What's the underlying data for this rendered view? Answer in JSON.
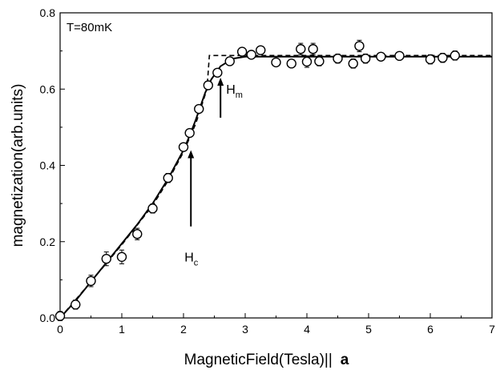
{
  "chart_data": {
    "type": "scatter",
    "title": "",
    "xlabel": "MagneticField(Tesla)||",
    "xlabel_suffix": "a",
    "ylabel": "magnetization(arb.units)",
    "xlim": [
      0,
      7
    ],
    "ylim": [
      0,
      0.8
    ],
    "x_ticks": [
      {
        "value": 0,
        "label": "0"
      },
      {
        "value": 1,
        "label": "1"
      },
      {
        "value": 2,
        "label": "2"
      },
      {
        "value": 3,
        "label": "3"
      },
      {
        "value": 4,
        "label": "4"
      },
      {
        "value": 5,
        "label": "5"
      },
      {
        "value": 6,
        "label": "6"
      },
      {
        "value": 7,
        "label": "7"
      }
    ],
    "y_ticks": [
      {
        "value": 0,
        "label": "0.0"
      },
      {
        "value": 0.2,
        "label": "0.2"
      },
      {
        "value": 0.4,
        "label": "0.4"
      },
      {
        "value": 0.6,
        "label": "0.6"
      },
      {
        "value": 0.8,
        "label": "0.8"
      }
    ],
    "grid": false,
    "annotations": {
      "temperature": "T=80mK",
      "hc": {
        "label": "H",
        "sub": "c",
        "x": 2.12,
        "y_from": 0.24,
        "y_to": 0.44
      },
      "hm": {
        "label": "H",
        "sub": "m",
        "x": 2.6,
        "y_from": 0.525,
        "y_to": 0.63
      }
    },
    "series": [
      {
        "kind": "points-with-error",
        "points": [
          {
            "x": 0.0,
            "y": 0.005,
            "err": 0.012
          },
          {
            "x": 0.25,
            "y": 0.035,
            "err": 0.012
          },
          {
            "x": 0.5,
            "y": 0.097,
            "err": 0.015
          },
          {
            "x": 0.75,
            "y": 0.155,
            "err": 0.018
          },
          {
            "x": 1.0,
            "y": 0.16,
            "err": 0.018
          },
          {
            "x": 1.25,
            "y": 0.22,
            "err": 0.015
          },
          {
            "x": 1.5,
            "y": 0.287,
            "err": 0.012
          },
          {
            "x": 1.75,
            "y": 0.367,
            "err": 0.012
          },
          {
            "x": 2.0,
            "y": 0.448,
            "err": 0.01
          },
          {
            "x": 2.1,
            "y": 0.485,
            "err": 0.01
          },
          {
            "x": 2.25,
            "y": 0.548,
            "err": 0.01
          },
          {
            "x": 2.4,
            "y": 0.61,
            "err": 0.01
          },
          {
            "x": 2.55,
            "y": 0.643,
            "err": 0.01
          },
          {
            "x": 2.75,
            "y": 0.673,
            "err": 0.008
          },
          {
            "x": 2.95,
            "y": 0.698,
            "err": 0.008
          },
          {
            "x": 3.1,
            "y": 0.69,
            "err": 0.01
          },
          {
            "x": 3.25,
            "y": 0.702,
            "err": 0.008
          },
          {
            "x": 3.5,
            "y": 0.67,
            "err": 0.01
          },
          {
            "x": 3.75,
            "y": 0.667,
            "err": 0.01
          },
          {
            "x": 3.9,
            "y": 0.705,
            "err": 0.015
          },
          {
            "x": 4.0,
            "y": 0.672,
            "err": 0.015
          },
          {
            "x": 4.1,
            "y": 0.705,
            "err": 0.015
          },
          {
            "x": 4.2,
            "y": 0.673,
            "err": 0.012
          },
          {
            "x": 4.5,
            "y": 0.68,
            "err": 0.012
          },
          {
            "x": 4.75,
            "y": 0.667,
            "err": 0.012
          },
          {
            "x": 4.85,
            "y": 0.713,
            "err": 0.015
          },
          {
            "x": 4.95,
            "y": 0.68,
            "err": 0.012
          },
          {
            "x": 5.2,
            "y": 0.685,
            "err": 0.01
          },
          {
            "x": 5.5,
            "y": 0.687,
            "err": 0.01
          },
          {
            "x": 6.0,
            "y": 0.678,
            "err": 0.012
          },
          {
            "x": 6.2,
            "y": 0.682,
            "err": 0.012
          },
          {
            "x": 6.4,
            "y": 0.688,
            "err": 0.012
          }
        ]
      },
      {
        "kind": "line-solid",
        "points": [
          {
            "x": 0.0,
            "y": 0.0
          },
          {
            "x": 0.25,
            "y": 0.045
          },
          {
            "x": 0.5,
            "y": 0.095
          },
          {
            "x": 0.75,
            "y": 0.145
          },
          {
            "x": 1.0,
            "y": 0.195
          },
          {
            "x": 1.25,
            "y": 0.245
          },
          {
            "x": 1.5,
            "y": 0.3
          },
          {
            "x": 1.75,
            "y": 0.365
          },
          {
            "x": 2.0,
            "y": 0.44
          },
          {
            "x": 2.1,
            "y": 0.478
          },
          {
            "x": 2.2,
            "y": 0.52
          },
          {
            "x": 2.35,
            "y": 0.59
          },
          {
            "x": 2.45,
            "y": 0.625
          },
          {
            "x": 2.6,
            "y": 0.66
          },
          {
            "x": 2.8,
            "y": 0.68
          },
          {
            "x": 3.0,
            "y": 0.685
          },
          {
            "x": 7.0,
            "y": 0.685
          }
        ]
      },
      {
        "kind": "line-dashed",
        "points": [
          {
            "x": 0.0,
            "y": 0.0
          },
          {
            "x": 0.5,
            "y": 0.095
          },
          {
            "x": 1.0,
            "y": 0.192
          },
          {
            "x": 1.5,
            "y": 0.295
          },
          {
            "x": 1.75,
            "y": 0.36
          },
          {
            "x": 2.0,
            "y": 0.435
          },
          {
            "x": 2.2,
            "y": 0.51
          },
          {
            "x": 2.38,
            "y": 0.6
          },
          {
            "x": 2.42,
            "y": 0.688
          },
          {
            "x": 7.0,
            "y": 0.688
          }
        ]
      }
    ]
  }
}
